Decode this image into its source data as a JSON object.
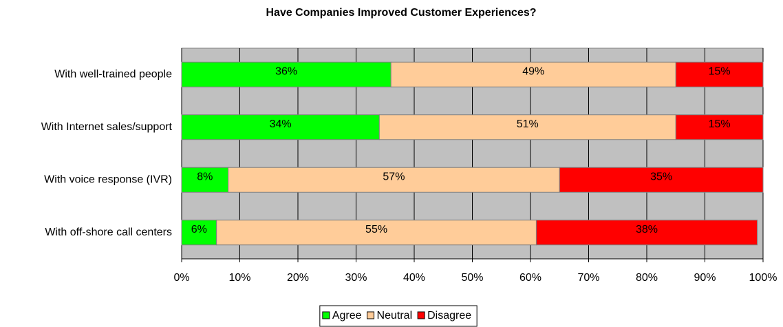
{
  "chart_data": {
    "type": "stacked_barh",
    "title": "Have Companies Improved Customer Experiences?",
    "categories": [
      "With well-trained people",
      "With Internet sales/support",
      "With voice response (IVR)",
      "With off-shore call centers"
    ],
    "series": [
      {
        "name": "Agree",
        "color": "#00ff00",
        "values": [
          36,
          34,
          8,
          6
        ],
        "value_labels": [
          "36%",
          "34%",
          "8%",
          "6%"
        ]
      },
      {
        "name": "Neutral",
        "color": "#ffcc99",
        "values": [
          49,
          51,
          57,
          55
        ],
        "value_labels": [
          "49%",
          "51%",
          "57%",
          "55%"
        ]
      },
      {
        "name": "Disagree",
        "color": "#ff0000",
        "values": [
          15,
          15,
          35,
          38
        ],
        "value_labels": [
          "15%",
          "15%",
          "35%",
          "38%"
        ]
      }
    ],
    "xlim": [
      0,
      100
    ],
    "xticks": [
      {
        "value": 0,
        "label": "0%"
      },
      {
        "value": 10,
        "label": "10%"
      },
      {
        "value": 20,
        "label": "20%"
      },
      {
        "value": 30,
        "label": "30%"
      },
      {
        "value": 40,
        "label": "40%"
      },
      {
        "value": 50,
        "label": "50%"
      },
      {
        "value": 60,
        "label": "60%"
      },
      {
        "value": 70,
        "label": "70%"
      },
      {
        "value": 80,
        "label": "80%"
      },
      {
        "value": 90,
        "label": "90%"
      },
      {
        "value": 100,
        "label": "100%"
      }
    ],
    "grid": true,
    "legend": "bottom"
  }
}
